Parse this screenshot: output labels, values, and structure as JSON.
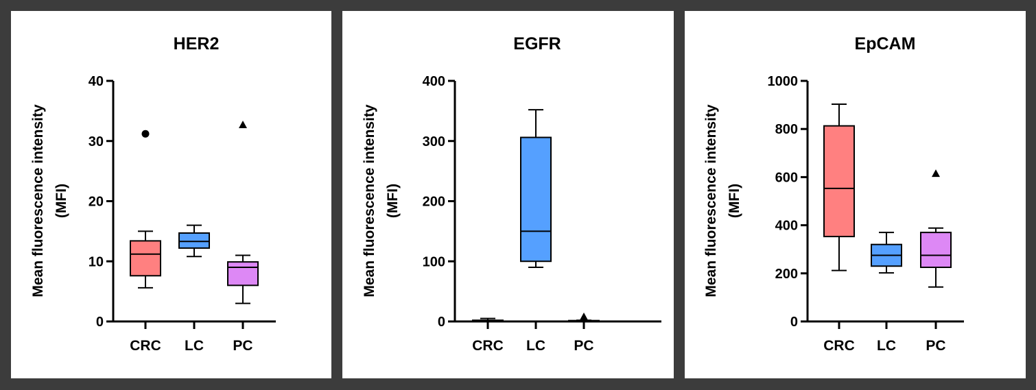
{
  "chart_data": [
    {
      "type": "box",
      "title": "HER2",
      "ylabel_line1": "Mean fluorescence intensity",
      "ylabel_line2": "(MFI)",
      "ylim": [
        0,
        40
      ],
      "yticks": [
        "0",
        "10",
        "20",
        "30",
        "40"
      ],
      "ytick_values": [
        0,
        10,
        20,
        30,
        40
      ],
      "categories": [
        "CRC",
        "LC",
        "PC"
      ],
      "boxes": [
        {
          "min": 5.6,
          "q1": 7.6,
          "median": 11.2,
          "q3": 13.4,
          "max": 15,
          "outliers": [
            31.2
          ],
          "marker": "circle"
        },
        {
          "min": 10.8,
          "q1": 12.2,
          "median": 13.3,
          "q3": 14.7,
          "max": 16,
          "outliers": [],
          "marker": "square"
        },
        {
          "min": 3,
          "q1": 6,
          "median": 9,
          "q3": 9.9,
          "max": 11,
          "outliers": [
            32.7
          ],
          "marker": "triangle"
        }
      ]
    },
    {
      "type": "box",
      "title": "EGFR",
      "ylabel_line1": "Mean fluorescence intensity",
      "ylabel_line2": "(MFI)",
      "ylim": [
        0,
        400
      ],
      "yticks": [
        "0",
        "100",
        "200",
        "300",
        "400"
      ],
      "ytick_values": [
        0,
        100,
        200,
        300,
        400
      ],
      "categories": [
        "CRC",
        "LC",
        "PC"
      ],
      "boxes": [
        {
          "min": 0,
          "q1": 0.5,
          "median": 1,
          "q3": 2,
          "max": 5,
          "outliers": [],
          "marker": "circle"
        },
        {
          "min": 90,
          "q1": 100,
          "median": 150,
          "q3": 306,
          "max": 352,
          "outliers": [],
          "marker": "square"
        },
        {
          "min": 0,
          "q1": 0.5,
          "median": 1,
          "q3": 1.5,
          "max": 2,
          "outliers": [
            8
          ],
          "marker": "triangle"
        }
      ]
    },
    {
      "type": "box",
      "title": "EpCAM",
      "ylabel_line1": "Mean fluorescence intensity",
      "ylabel_line2": "(MFI)",
      "ylim": [
        0,
        1000
      ],
      "yticks": [
        "0",
        "200",
        "400",
        "600",
        "800",
        "1000"
      ],
      "ytick_values": [
        0,
        200,
        400,
        600,
        800,
        1000
      ],
      "categories": [
        "CRC",
        "LC",
        "PC"
      ],
      "boxes": [
        {
          "min": 212,
          "q1": 353,
          "median": 553,
          "q3": 813,
          "max": 903,
          "outliers": [],
          "marker": "circle"
        },
        {
          "min": 202,
          "q1": 230,
          "median": 275,
          "q3": 320,
          "max": 370,
          "outliers": [],
          "marker": "square"
        },
        {
          "min": 143,
          "q1": 225,
          "median": 275,
          "q3": 370,
          "max": 388,
          "outliers": [
            615
          ],
          "marker": "triangle"
        }
      ]
    }
  ],
  "colors": {
    "CRC": "#ff8080",
    "LC": "#55a0ff",
    "PC": "#dd88f5",
    "background": "#3c3c3c"
  }
}
